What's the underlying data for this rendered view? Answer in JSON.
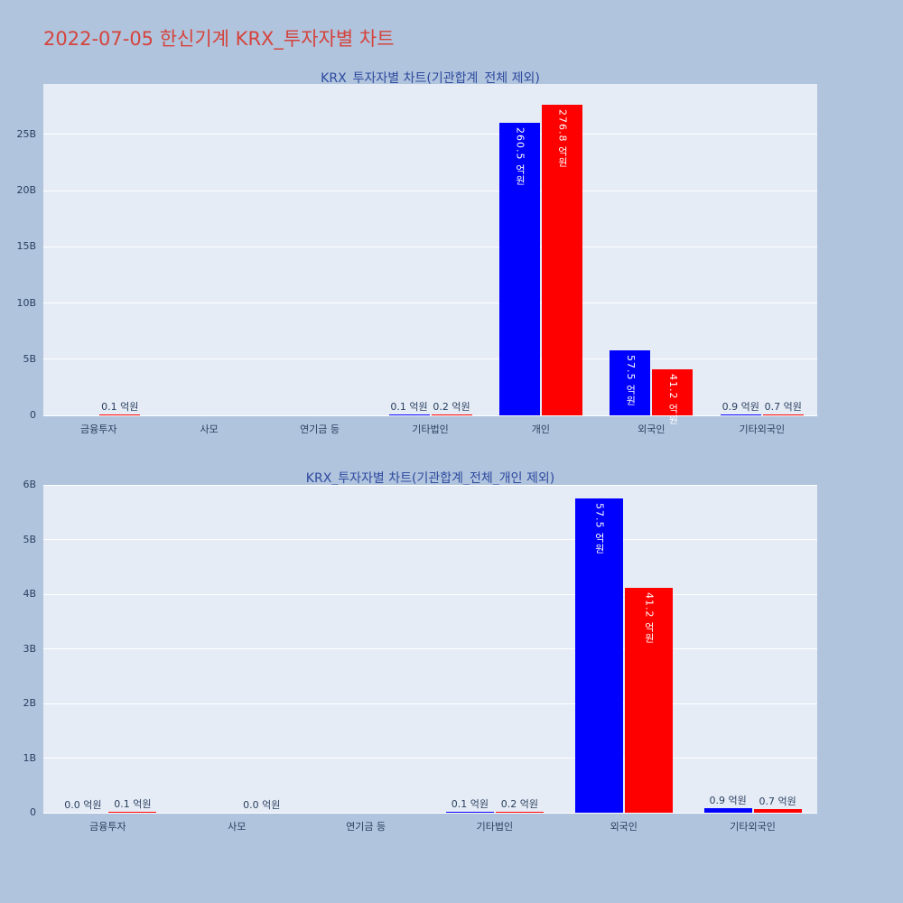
{
  "page": {
    "title": "2022-07-05 한신기계 KRX_투자자별 차트",
    "background": "#b0c4de"
  },
  "colors": {
    "page_title": "#d5443c",
    "chart_title": "#2e4a9e",
    "axis_text": "#2a3f5f",
    "plot_bg": "#e5ecf6",
    "gridline": "#ffffff",
    "blue_series": "#0000ff",
    "red_series": "#ff0000"
  },
  "chart_data": [
    {
      "type": "bar",
      "title": "KRX_투자자별 차트(기관합계_전체 제외)",
      "unit": "억원",
      "ylim": [
        0,
        29500000000
      ],
      "grid": true,
      "legend": "none",
      "yticks": [
        {
          "v": 0,
          "label": "0"
        },
        {
          "v": 5000000000,
          "label": "5B"
        },
        {
          "v": 10000000000,
          "label": "10B"
        },
        {
          "v": 15000000000,
          "label": "15B"
        },
        {
          "v": 20000000000,
          "label": "20B"
        },
        {
          "v": 25000000000,
          "label": "25B"
        }
      ],
      "categories": [
        "금융투자",
        "사모",
        "연기금 등",
        "기타법인",
        "개인",
        "외국인",
        "기타외국인"
      ],
      "series": [
        {
          "name": "blue",
          "color": "#0000ff",
          "values": [
            null,
            null,
            null,
            10000000,
            26050000000,
            5750000000,
            90000000
          ],
          "labels": [
            null,
            null,
            null,
            "0.1 억원",
            "260.5 억원",
            "57.5 억원",
            "0.9 억원"
          ],
          "label_pos": [
            null,
            null,
            null,
            "outside",
            "inside",
            "inside",
            "outside"
          ]
        },
        {
          "name": "red",
          "color": "#ff0000",
          "values": [
            10000000,
            null,
            null,
            20000000,
            27680000000,
            4120000000,
            70000000
          ],
          "labels": [
            "0.1 억원",
            null,
            null,
            "0.2 억원",
            "276.8 억원",
            "41.2 억원",
            "0.7 억원"
          ],
          "label_pos": [
            "outside",
            null,
            null,
            "outside",
            "inside",
            "inside",
            "outside"
          ]
        }
      ]
    },
    {
      "type": "bar",
      "title": "KRX_투자자별 차트(기관합계_전체_개인 제외)",
      "unit": "억원",
      "ylim": [
        0,
        6000000000
      ],
      "grid": true,
      "legend": "none",
      "yticks": [
        {
          "v": 0,
          "label": "0"
        },
        {
          "v": 1000000000,
          "label": "1B"
        },
        {
          "v": 2000000000,
          "label": "2B"
        },
        {
          "v": 3000000000,
          "label": "3B"
        },
        {
          "v": 4000000000,
          "label": "4B"
        },
        {
          "v": 5000000000,
          "label": "5B"
        },
        {
          "v": 6000000000,
          "label": "6B"
        }
      ],
      "categories": [
        "금융투자",
        "사모",
        "연기금 등",
        "기타법인",
        "외국인",
        "기타외국인"
      ],
      "series": [
        {
          "name": "blue",
          "color": "#0000ff",
          "values": [
            0,
            null,
            null,
            10000000,
            5750000000,
            90000000
          ],
          "labels": [
            "0.0 억원",
            null,
            null,
            "0.1 억원",
            "57.5 억원",
            "0.9 억원"
          ],
          "label_pos": [
            "outside",
            null,
            null,
            "outside",
            "inside",
            "outside"
          ]
        },
        {
          "name": "red",
          "color": "#ff0000",
          "values": [
            10000000,
            0,
            null,
            20000000,
            4120000000,
            70000000
          ],
          "labels": [
            "0.1 억원",
            "0.0 억원",
            null,
            "0.2 억원",
            "41.2 억원",
            "0.7 억원"
          ],
          "label_pos": [
            "outside",
            "outside",
            null,
            "outside",
            "inside",
            "outside"
          ]
        }
      ]
    }
  ]
}
